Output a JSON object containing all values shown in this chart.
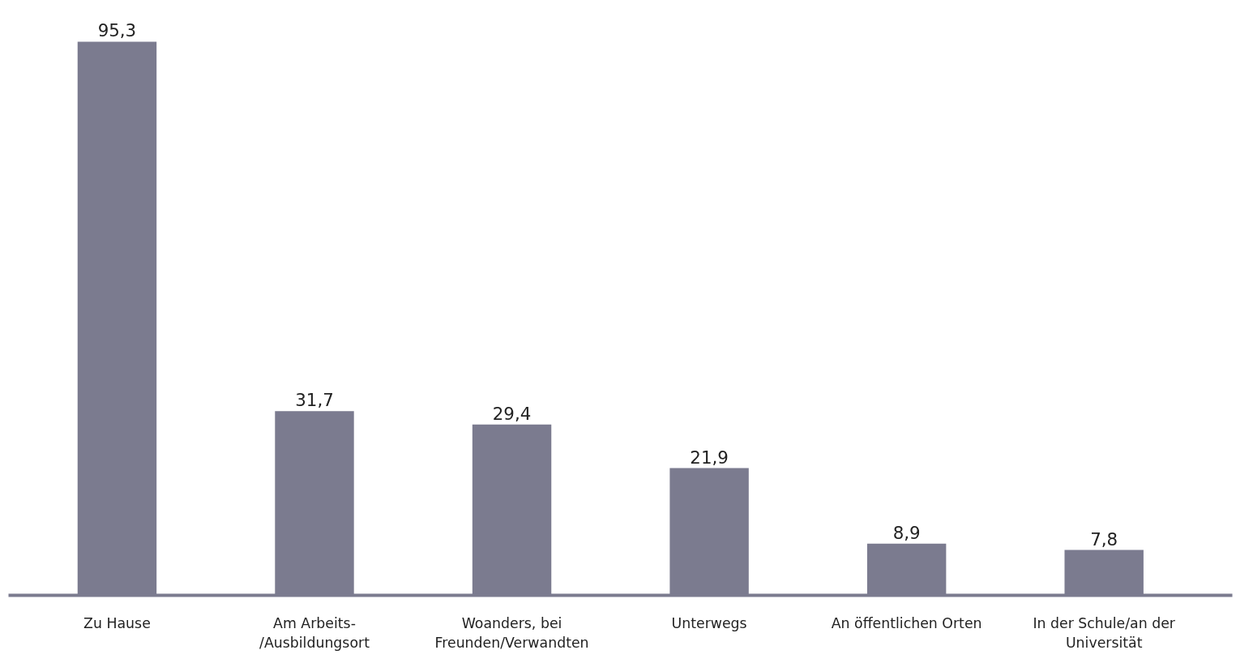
{
  "chart_data": {
    "type": "bar",
    "categories": [
      "Zu Hause",
      "Am Arbeits-\n/Ausbildungsort",
      "Woanders, bei\nFreunden/Verwandten",
      "Unterwegs",
      "An öffentlichen Orten",
      "In der Schule/an der\nUniversität"
    ],
    "values": [
      95.3,
      31.7,
      29.4,
      21.9,
      8.9,
      7.8
    ],
    "value_labels": [
      "95,3",
      "31,7",
      "29,4",
      "21,9",
      "8,9",
      "7,8"
    ],
    "color": "#7b7b8f",
    "grid": false
  }
}
